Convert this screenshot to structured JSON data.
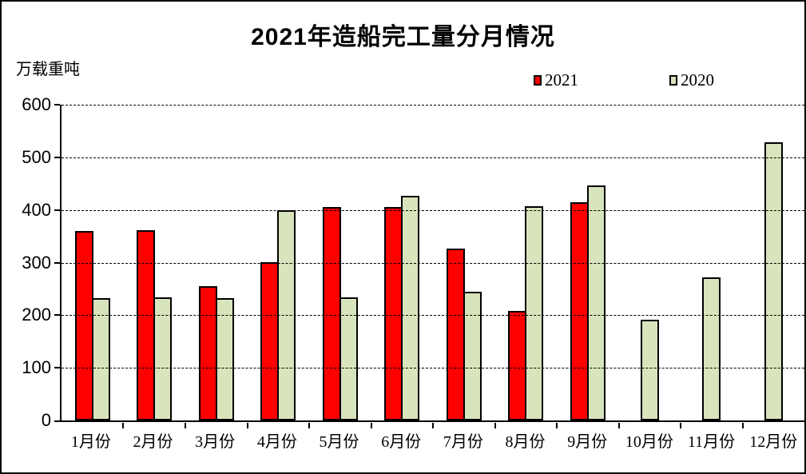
{
  "title": "2021年造船完工量分月情况",
  "y_axis_unit": "万载重吨",
  "colors": {
    "series_2021": "#FF0000",
    "series_2020": "#D8E4BC",
    "axis": "#000000",
    "background": "#FFFFFF"
  },
  "chart_data": {
    "type": "bar",
    "title": "2021年造船完工量分月情况",
    "xlabel": "",
    "ylabel": "万载重吨",
    "categories": [
      "1月份",
      "2月份",
      "3月份",
      "4月份",
      "5月份",
      "6月份",
      "7月份",
      "8月份",
      "9月份",
      "10月份",
      "11月份",
      "12月份"
    ],
    "series": [
      {
        "name": "2021",
        "color": "#FF0000",
        "values": [
          360,
          362,
          255,
          301,
          405,
          406,
          326,
          208,
          415,
          null,
          null,
          null
        ]
      },
      {
        "name": "2020",
        "color": "#D8E4BC",
        "values": [
          233,
          234,
          232,
          399,
          234,
          427,
          245,
          407,
          446,
          192,
          272,
          529
        ]
      }
    ],
    "ylim": [
      0,
      600
    ],
    "ytick_interval": 100,
    "ytick_labels": [
      "600",
      "500",
      "400",
      "300",
      "200",
      "100",
      "0"
    ],
    "grid": "horizontal-dashed",
    "legend_position": "top-right",
    "legend_entries": [
      "2021",
      "2020"
    ]
  }
}
